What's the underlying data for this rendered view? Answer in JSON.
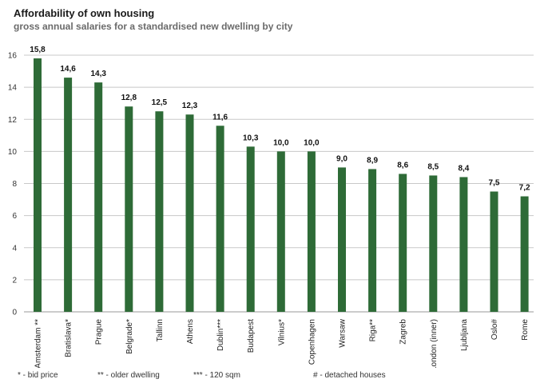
{
  "header": {
    "title": "Affordability of own housing",
    "subtitle": "gross annual salaries for a standardised new dwelling by city"
  },
  "chart_data": {
    "type": "bar",
    "title": "Affordability of own housing",
    "subtitle": "gross annual salaries for a standardised new dwelling by city",
    "xlabel": "",
    "ylabel": "",
    "ylim": [
      0,
      16
    ],
    "yticks": [
      0,
      2,
      4,
      6,
      8,
      10,
      12,
      14,
      16
    ],
    "grid": true,
    "bar_color": "#2e6b37",
    "categories": [
      "Amsterdam **",
      "Bratislava*",
      "Prague",
      "Belgrade*",
      "Tallinn",
      "Athens",
      "Dublin***",
      "Budapest",
      "Vilnius*",
      "Copenhagen",
      "Warsaw",
      "Riga**",
      "Zagreb",
      "London (inner)",
      "Ljubljana",
      "Oslo#",
      "Rome"
    ],
    "values": [
      15.8,
      14.6,
      14.3,
      12.8,
      12.5,
      12.3,
      11.6,
      10.3,
      10.0,
      10.0,
      9.0,
      8.9,
      8.6,
      8.5,
      8.4,
      7.5,
      7.2
    ],
    "data_labels": [
      "15,8",
      "14,6",
      "14,3",
      "12,8",
      "12,5",
      "12,3",
      "11,6",
      "10,3",
      "10,0",
      "10,0",
      "9,0",
      "8,9",
      "8,6",
      "8,5",
      "8,4",
      "7,5",
      "7,2"
    ]
  },
  "footnotes": [
    "* - bid price",
    "** - older dwelling",
    "*** - 120 sqm",
    "# - detached houses"
  ]
}
